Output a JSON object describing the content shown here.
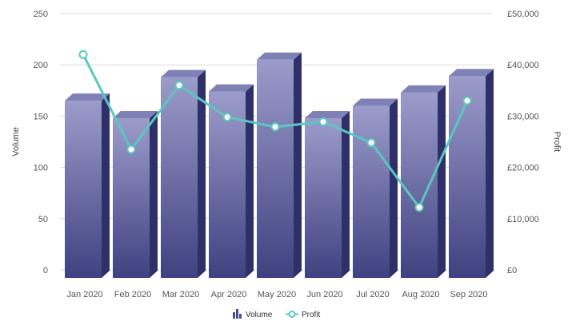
{
  "chart_data": {
    "type": "bar",
    "categories": [
      "Jan 2020",
      "Feb 2020",
      "Mar 2020",
      "Apr 2020",
      "May 2020",
      "Jun 2020",
      "Jul 2020",
      "Aug 2020",
      "Sep 2020"
    ],
    "series": [
      {
        "name": "Volume",
        "type": "bar",
        "axis": "left",
        "values": [
          165,
          148,
          188,
          174,
          205,
          148,
          160,
          173,
          189
        ]
      },
      {
        "name": "Profit",
        "type": "line",
        "axis": "right",
        "values": [
          42000,
          23500,
          36000,
          29800,
          27900,
          28900,
          24800,
          12200,
          33000
        ]
      }
    ],
    "y_left": {
      "title": "Volume",
      "ylim": [
        0,
        250
      ],
      "ticks": [
        0,
        50,
        100,
        150,
        200,
        250
      ],
      "tick_labels": [
        "0",
        "50",
        "100",
        "150",
        "200",
        "250"
      ]
    },
    "y_right": {
      "title": "Profit",
      "ylim": [
        0,
        50000
      ],
      "ticks": [
        0,
        10000,
        20000,
        30000,
        40000,
        50000
      ],
      "tick_labels": [
        "£0",
        "£10,000",
        "£20,000",
        "£30,000",
        "£40,000",
        "£50,000"
      ]
    },
    "grid": true,
    "legend": {
      "position": "bottom",
      "items": [
        "Volume",
        "Profit"
      ]
    },
    "colors": {
      "bar_top": "#9c9ccb",
      "bar_bottom": "#3f4180",
      "bar_side": "#2f306a",
      "bar_cap": "#7f80b5",
      "line": "#5ac8c0",
      "grid": "#d9d9d9",
      "legend_icon": "#4a4c8c"
    }
  }
}
